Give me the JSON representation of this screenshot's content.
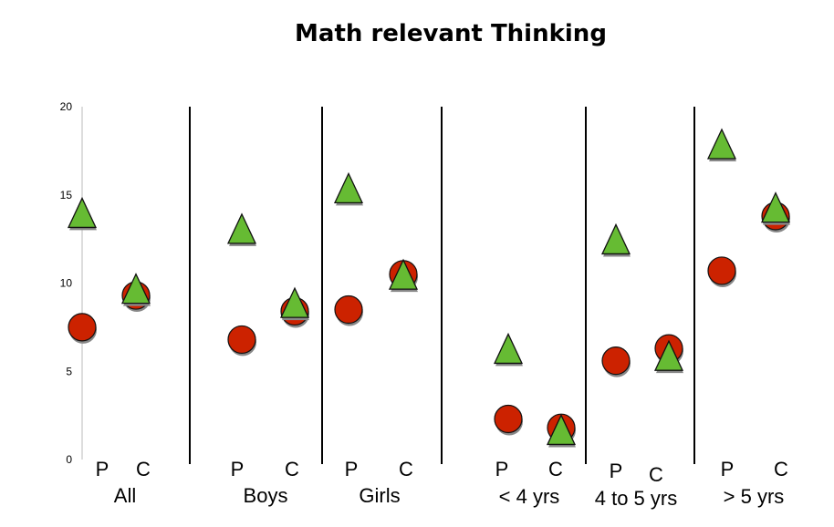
{
  "chart_data": {
    "type": "scatter",
    "title": "Math relevant Thinking",
    "xlabel": "",
    "ylabel": "",
    "ylim": [
      0,
      20
    ],
    "yticks": [
      "0",
      "5",
      "10",
      "15",
      "20"
    ],
    "grid": false,
    "legend": "none",
    "groups": [
      {
        "label": "All",
        "sub": [
          "P",
          "C"
        ],
        "circle": [
          7.5,
          9.3
        ],
        "triangle": [
          13.9,
          9.6
        ]
      },
      {
        "label": "Boys",
        "sub": [
          "P",
          "C"
        ],
        "circle": [
          6.8,
          8.4
        ],
        "triangle": [
          13.0,
          8.8
        ]
      },
      {
        "label": "Girls",
        "sub": [
          "P",
          "C"
        ],
        "circle": [
          8.5,
          10.5
        ],
        "triangle": [
          15.3,
          10.4
        ]
      },
      {
        "label": "< 4 yrs",
        "sub": [
          "P",
          "C"
        ],
        "circle": [
          2.3,
          1.8
        ],
        "triangle": [
          6.2,
          1.6
        ]
      },
      {
        "label": "4 to 5 yrs",
        "sub": [
          "P",
          "C"
        ],
        "circle": [
          5.6,
          6.3
        ],
        "triangle": [
          12.4,
          5.8
        ]
      },
      {
        "label": "> 5 yrs",
        "sub": [
          "P",
          "C"
        ],
        "circle": [
          10.7,
          13.8
        ],
        "triangle": [
          17.8,
          14.2
        ]
      }
    ],
    "colors": {
      "circle": "#cc2200",
      "triangle": "#66bb33",
      "shadow": "#888888"
    }
  }
}
